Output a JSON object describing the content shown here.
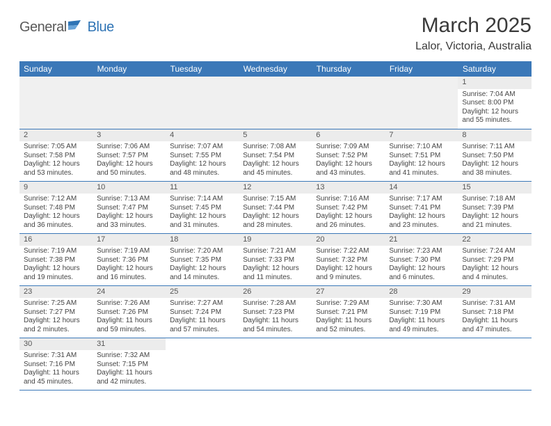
{
  "logo": {
    "part1": "General",
    "part2": "Blue",
    "flag_colors": [
      "#2f74b5",
      "#6aa5da"
    ]
  },
  "title": "March 2025",
  "location": "Lalor, Victoria, Australia",
  "header_bg": "#3b78b8",
  "header_fg": "#ffffff",
  "daynum_bg": "#ececec",
  "border_color": "#3b78b8",
  "weekdays": [
    "Sunday",
    "Monday",
    "Tuesday",
    "Wednesday",
    "Thursday",
    "Friday",
    "Saturday"
  ],
  "weeks": [
    [
      null,
      null,
      null,
      null,
      null,
      null,
      {
        "n": "1",
        "sr": "Sunrise: 7:04 AM",
        "ss": "Sunset: 8:00 PM",
        "dl": "Daylight: 12 hours and 55 minutes."
      }
    ],
    [
      {
        "n": "2",
        "sr": "Sunrise: 7:05 AM",
        "ss": "Sunset: 7:58 PM",
        "dl": "Daylight: 12 hours and 53 minutes."
      },
      {
        "n": "3",
        "sr": "Sunrise: 7:06 AM",
        "ss": "Sunset: 7:57 PM",
        "dl": "Daylight: 12 hours and 50 minutes."
      },
      {
        "n": "4",
        "sr": "Sunrise: 7:07 AM",
        "ss": "Sunset: 7:55 PM",
        "dl": "Daylight: 12 hours and 48 minutes."
      },
      {
        "n": "5",
        "sr": "Sunrise: 7:08 AM",
        "ss": "Sunset: 7:54 PM",
        "dl": "Daylight: 12 hours and 45 minutes."
      },
      {
        "n": "6",
        "sr": "Sunrise: 7:09 AM",
        "ss": "Sunset: 7:52 PM",
        "dl": "Daylight: 12 hours and 43 minutes."
      },
      {
        "n": "7",
        "sr": "Sunrise: 7:10 AM",
        "ss": "Sunset: 7:51 PM",
        "dl": "Daylight: 12 hours and 41 minutes."
      },
      {
        "n": "8",
        "sr": "Sunrise: 7:11 AM",
        "ss": "Sunset: 7:50 PM",
        "dl": "Daylight: 12 hours and 38 minutes."
      }
    ],
    [
      {
        "n": "9",
        "sr": "Sunrise: 7:12 AM",
        "ss": "Sunset: 7:48 PM",
        "dl": "Daylight: 12 hours and 36 minutes."
      },
      {
        "n": "10",
        "sr": "Sunrise: 7:13 AM",
        "ss": "Sunset: 7:47 PM",
        "dl": "Daylight: 12 hours and 33 minutes."
      },
      {
        "n": "11",
        "sr": "Sunrise: 7:14 AM",
        "ss": "Sunset: 7:45 PM",
        "dl": "Daylight: 12 hours and 31 minutes."
      },
      {
        "n": "12",
        "sr": "Sunrise: 7:15 AM",
        "ss": "Sunset: 7:44 PM",
        "dl": "Daylight: 12 hours and 28 minutes."
      },
      {
        "n": "13",
        "sr": "Sunrise: 7:16 AM",
        "ss": "Sunset: 7:42 PM",
        "dl": "Daylight: 12 hours and 26 minutes."
      },
      {
        "n": "14",
        "sr": "Sunrise: 7:17 AM",
        "ss": "Sunset: 7:41 PM",
        "dl": "Daylight: 12 hours and 23 minutes."
      },
      {
        "n": "15",
        "sr": "Sunrise: 7:18 AM",
        "ss": "Sunset: 7:39 PM",
        "dl": "Daylight: 12 hours and 21 minutes."
      }
    ],
    [
      {
        "n": "16",
        "sr": "Sunrise: 7:19 AM",
        "ss": "Sunset: 7:38 PM",
        "dl": "Daylight: 12 hours and 19 minutes."
      },
      {
        "n": "17",
        "sr": "Sunrise: 7:19 AM",
        "ss": "Sunset: 7:36 PM",
        "dl": "Daylight: 12 hours and 16 minutes."
      },
      {
        "n": "18",
        "sr": "Sunrise: 7:20 AM",
        "ss": "Sunset: 7:35 PM",
        "dl": "Daylight: 12 hours and 14 minutes."
      },
      {
        "n": "19",
        "sr": "Sunrise: 7:21 AM",
        "ss": "Sunset: 7:33 PM",
        "dl": "Daylight: 12 hours and 11 minutes."
      },
      {
        "n": "20",
        "sr": "Sunrise: 7:22 AM",
        "ss": "Sunset: 7:32 PM",
        "dl": "Daylight: 12 hours and 9 minutes."
      },
      {
        "n": "21",
        "sr": "Sunrise: 7:23 AM",
        "ss": "Sunset: 7:30 PM",
        "dl": "Daylight: 12 hours and 6 minutes."
      },
      {
        "n": "22",
        "sr": "Sunrise: 7:24 AM",
        "ss": "Sunset: 7:29 PM",
        "dl": "Daylight: 12 hours and 4 minutes."
      }
    ],
    [
      {
        "n": "23",
        "sr": "Sunrise: 7:25 AM",
        "ss": "Sunset: 7:27 PM",
        "dl": "Daylight: 12 hours and 2 minutes."
      },
      {
        "n": "24",
        "sr": "Sunrise: 7:26 AM",
        "ss": "Sunset: 7:26 PM",
        "dl": "Daylight: 11 hours and 59 minutes."
      },
      {
        "n": "25",
        "sr": "Sunrise: 7:27 AM",
        "ss": "Sunset: 7:24 PM",
        "dl": "Daylight: 11 hours and 57 minutes."
      },
      {
        "n": "26",
        "sr": "Sunrise: 7:28 AM",
        "ss": "Sunset: 7:23 PM",
        "dl": "Daylight: 11 hours and 54 minutes."
      },
      {
        "n": "27",
        "sr": "Sunrise: 7:29 AM",
        "ss": "Sunset: 7:21 PM",
        "dl": "Daylight: 11 hours and 52 minutes."
      },
      {
        "n": "28",
        "sr": "Sunrise: 7:30 AM",
        "ss": "Sunset: 7:19 PM",
        "dl": "Daylight: 11 hours and 49 minutes."
      },
      {
        "n": "29",
        "sr": "Sunrise: 7:31 AM",
        "ss": "Sunset: 7:18 PM",
        "dl": "Daylight: 11 hours and 47 minutes."
      }
    ],
    [
      {
        "n": "30",
        "sr": "Sunrise: 7:31 AM",
        "ss": "Sunset: 7:16 PM",
        "dl": "Daylight: 11 hours and 45 minutes."
      },
      {
        "n": "31",
        "sr": "Sunrise: 7:32 AM",
        "ss": "Sunset: 7:15 PM",
        "dl": "Daylight: 11 hours and 42 minutes."
      },
      null,
      null,
      null,
      null,
      null
    ]
  ]
}
